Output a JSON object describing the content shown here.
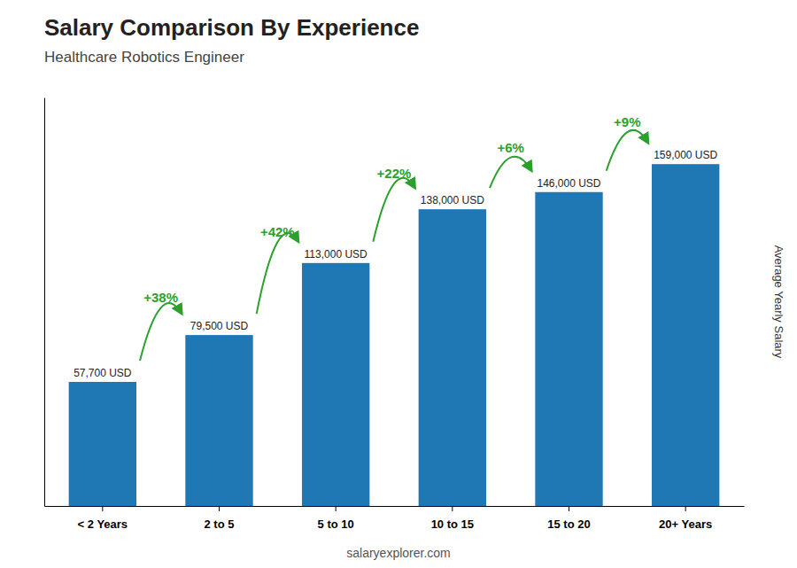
{
  "chart_data": {
    "type": "bar",
    "title": "Salary Comparison By Experience",
    "subtitle": "Healthcare Robotics Engineer",
    "categories": [
      "< 2 Years",
      "2 to 5",
      "5 to 10",
      "10 to 15",
      "15 to 20",
      "20+ Years"
    ],
    "values": [
      57700,
      79500,
      113000,
      138000,
      146000,
      159000
    ],
    "value_labels": [
      "57,700 USD",
      "79,500 USD",
      "113,000 USD",
      "138,000 USD",
      "146,000 USD",
      "159,000 USD"
    ],
    "data_labels": true,
    "annotations": [
      "+38%",
      "+42%",
      "+22%",
      "+6%",
      "+9%"
    ],
    "ylabel": "Average Yearly Salary",
    "footer": "salaryexplorer.com",
    "ylim": [
      0,
      190000
    ],
    "tick_labels": "x",
    "grid": false
  }
}
